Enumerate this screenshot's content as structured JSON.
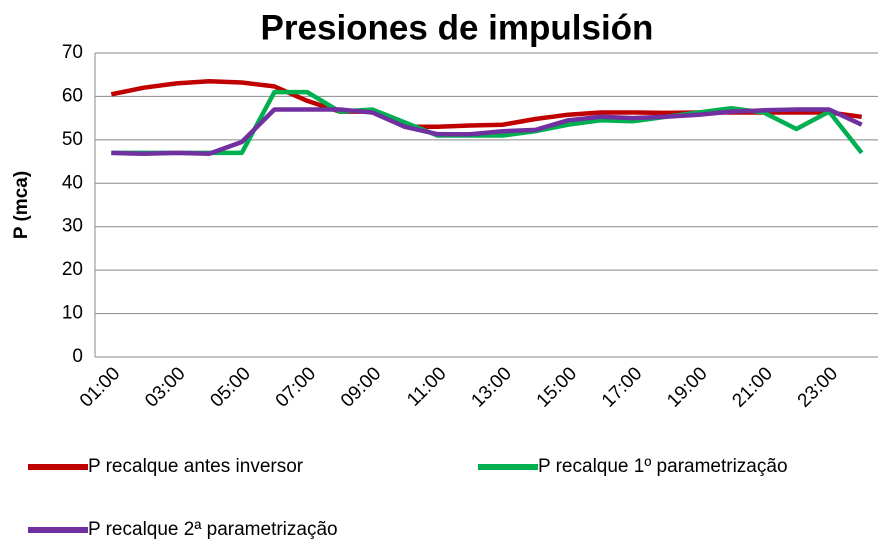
{
  "chart_data": {
    "type": "line",
    "title": "Presiones de impulsión",
    "ylabel": "P (mca)",
    "categories": [
      "01:00",
      null,
      "03:00",
      null,
      "05:00",
      null,
      "07:00",
      null,
      "09:00",
      null,
      "11:00",
      null,
      "13:00",
      null,
      "15:00",
      null,
      "17:00",
      null,
      "19:00",
      null,
      "21:00",
      null,
      "23:00",
      null
    ],
    "series": [
      {
        "name": "P recalque antes inversor",
        "color": "#c00000",
        "values": [
          60.5,
          62,
          63,
          63.5,
          63.2,
          62.3,
          59,
          56.5,
          56.5,
          53,
          53,
          53.3,
          53.5,
          54.8,
          55.8,
          56.3,
          56.3,
          56.2,
          56.3,
          56.3,
          56.3,
          56.3,
          56.3,
          55.3
        ]
      },
      {
        "name": "P recalque 1º parametrização",
        "color": "#00b050",
        "values": [
          47,
          47,
          47,
          47,
          47,
          61,
          61,
          56.5,
          57,
          54,
          51,
          51,
          51,
          52,
          53.5,
          54.5,
          54.3,
          55.3,
          56.3,
          57.3,
          56.3,
          52.5,
          56.5,
          47
        ]
      },
      {
        "name": "P recalque 2ª parametrização",
        "color": "#7030a0",
        "values": [
          47,
          46.8,
          47,
          46.8,
          49.5,
          57,
          57,
          57,
          56.3,
          53,
          51.3,
          51.3,
          52,
          52.3,
          54.5,
          55.3,
          55,
          55.3,
          55.8,
          56.5,
          56.8,
          57,
          57,
          53.5
        ]
      }
    ],
    "ylim": [
      0,
      70
    ],
    "yticks": [
      0,
      10,
      20,
      30,
      40,
      50,
      60,
      70
    ],
    "grid": true,
    "legend": "bottom"
  }
}
